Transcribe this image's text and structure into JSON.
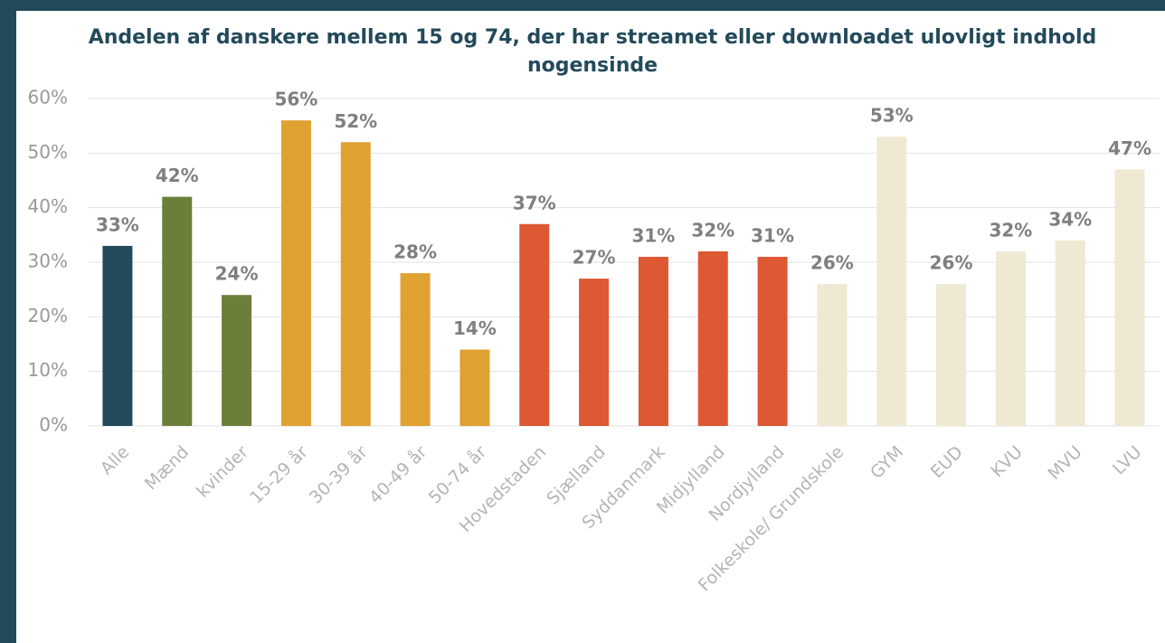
{
  "chart_data": {
    "type": "bar",
    "title": "Andelen af danskere mellem 15 og 74, der har streamet eller downloadet ulovligt indhold nogensinde",
    "categories": [
      "Alle",
      "Mænd",
      "kvinder",
      "15-29 år",
      "30-39 år",
      "40-49 år",
      "50-74 år",
      "Hovedstaden",
      "Sjælland",
      "Syddanmark",
      "Midjylland",
      "Nordjylland",
      "Folkeskole/ Grundskole",
      "GYM",
      "EUD",
      "KVU",
      "MVU",
      "LVU"
    ],
    "values": [
      33,
      42,
      24,
      56,
      52,
      28,
      14,
      37,
      27,
      31,
      32,
      31,
      26,
      53,
      26,
      32,
      34,
      47
    ],
    "value_labels": [
      "33%",
      "42%",
      "24%",
      "56%",
      "52%",
      "28%",
      "14%",
      "37%",
      "27%",
      "31%",
      "32%",
      "31%",
      "26%",
      "53%",
      "26%",
      "32%",
      "34%",
      "47%"
    ],
    "colors": [
      "#234a5a",
      "#6b7f3a",
      "#6b7f3a",
      "#e0a133",
      "#e0a133",
      "#e0a133",
      "#e0a133",
      "#dd5833",
      "#dd5833",
      "#dd5833",
      "#dd5833",
      "#dd5833",
      "#efe8d3",
      "#efe8d3",
      "#efe8d3",
      "#efe8d3",
      "#efe8d3",
      "#efe8d3"
    ],
    "ylim": [
      0,
      60
    ],
    "yticks": [
      {
        "value": 0,
        "label": "0%"
      },
      {
        "value": 10,
        "label": "10%"
      },
      {
        "value": 20,
        "label": "20%"
      },
      {
        "value": 30,
        "label": "30%"
      },
      {
        "value": 40,
        "label": "40%"
      },
      {
        "value": 50,
        "label": "50%"
      },
      {
        "value": 60,
        "label": "60%"
      }
    ],
    "grid": true
  }
}
